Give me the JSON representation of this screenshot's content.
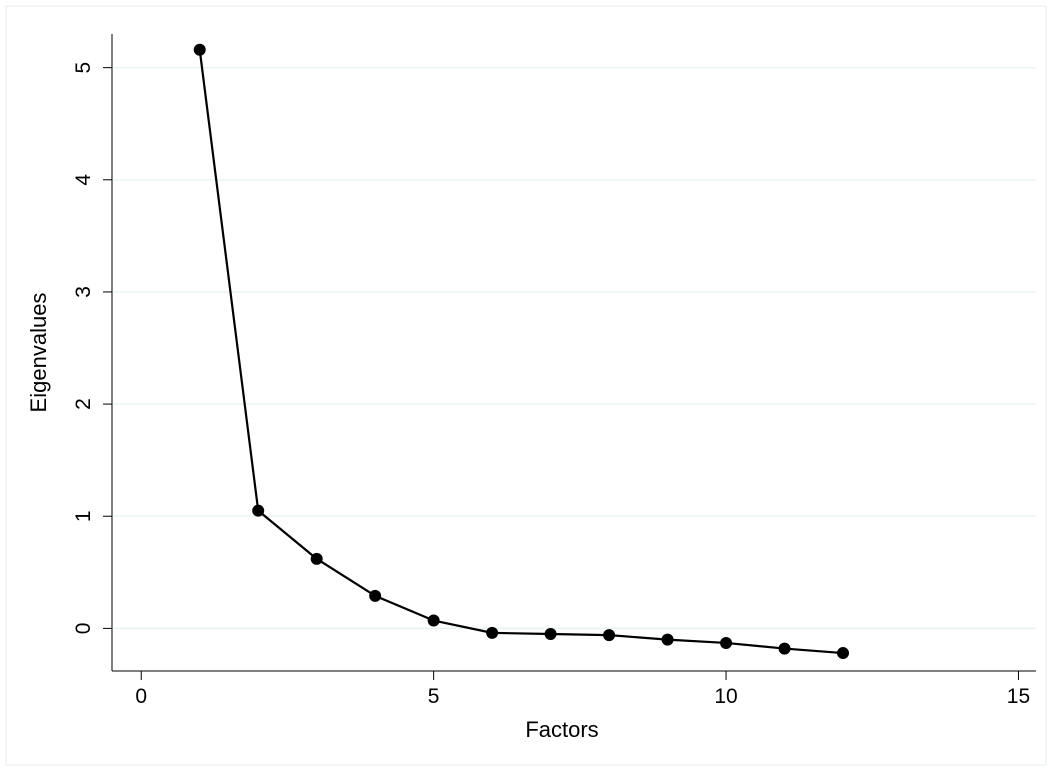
{
  "chart_data": {
    "type": "line",
    "title": "",
    "xlabel": "Factors",
    "ylabel": "Eigenvalues",
    "xlim": [
      -0.5,
      15.3
    ],
    "ylim": [
      -0.38,
      5.3
    ],
    "x_ticks": [
      0,
      5,
      10,
      15
    ],
    "y_ticks": [
      0,
      1,
      2,
      3,
      4,
      5
    ],
    "grid": {
      "y": true,
      "x": false
    },
    "legend": "none",
    "series": [
      {
        "x": [
          1,
          2,
          3,
          4,
          5,
          6,
          7,
          8,
          9,
          10,
          11,
          12
        ],
        "values": [
          5.16,
          1.05,
          0.62,
          0.29,
          0.07,
          -0.04,
          -0.05,
          -0.06,
          -0.1,
          -0.13,
          -0.18,
          -0.22
        ]
      }
    ],
    "colors": {
      "line": "#000000",
      "marker": "#000000",
      "grid": "#eaf2f3",
      "axis": "#000000",
      "frame": "#e6ecee",
      "background": "#ffffff"
    }
  }
}
